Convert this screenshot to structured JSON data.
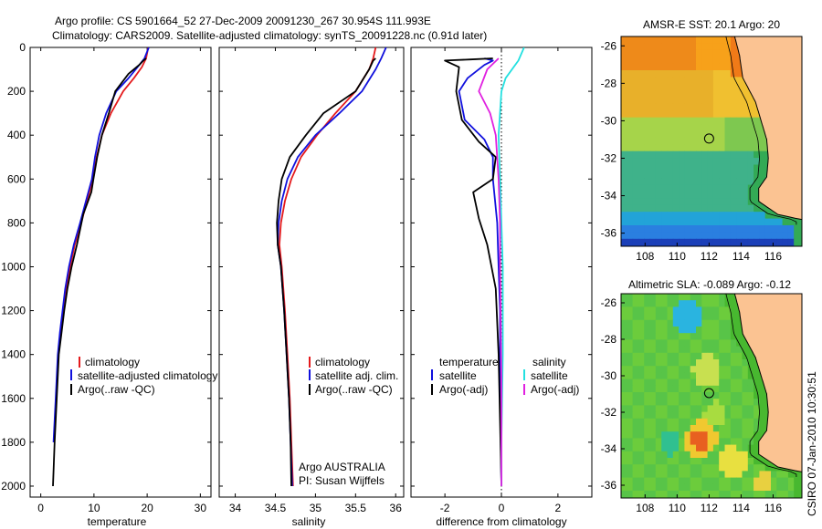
{
  "header": {
    "title_line1": "Argo profile: CS 5901664_52 27-Dec-2009 20091230_267 30.954S 111.993E",
    "title_line2": "Climatology: CARS2009. Satellite-adjusted climatology: synTS_20091228.nc (0.91d later)"
  },
  "side_label": "CSIRO 07-Jan-2010 10:30:51",
  "colors": {
    "climatology": "#e41a1c",
    "satellite": "#1010dd",
    "argo": "#000000",
    "sat_salinity": "#22e0e0",
    "argo_adj_salinity": "#e020e0",
    "land": "#fbc392"
  },
  "chart_data": [
    {
      "type": "line",
      "xlabel": "temperature",
      "ylabel": "",
      "xlim": [
        -2,
        32
      ],
      "ylim": [
        2050,
        0
      ],
      "xticks": [
        0,
        10,
        20,
        30
      ],
      "yticks": [
        0,
        200,
        400,
        600,
        800,
        1000,
        1200,
        1400,
        1600,
        1800,
        2000
      ],
      "legend": [
        "climatology",
        "satellite-adjusted climatology",
        "Argo(..raw -QC)"
      ],
      "series": [
        {
          "name": "climatology",
          "color": "#e41a1c",
          "x": [
            20.2,
            19.8,
            19.0,
            17.5,
            15.5,
            13.2,
            11.5,
            10.5,
            9.8,
            8.7,
            7.6,
            6.4,
            5.5,
            4.8,
            4.3,
            3.8,
            3.3,
            2.9,
            2.5
          ],
          "y": [
            0,
            50,
            90,
            140,
            200,
            300,
            400,
            500,
            600,
            700,
            800,
            900,
            1000,
            1100,
            1200,
            1300,
            1400,
            1600,
            1800
          ]
        },
        {
          "name": "satellite-adjusted climatology",
          "color": "#1010dd",
          "x": [
            20.3,
            19.5,
            18.2,
            16.5,
            14.2,
            12.3,
            11.0,
            10.2,
            9.6,
            8.5,
            7.4,
            6.2,
            5.3,
            4.6,
            4.1,
            3.6,
            3.2,
            2.8,
            2.4
          ],
          "y": [
            0,
            50,
            90,
            140,
            200,
            300,
            400,
            500,
            600,
            700,
            800,
            900,
            1000,
            1100,
            1200,
            1300,
            1400,
            1600,
            1800
          ]
        },
        {
          "name": "Argo(..raw -QC)",
          "color": "#000000",
          "x": [
            19.8,
            19.3,
            18.5,
            16.5,
            14.0,
            12.8,
            11.5,
            10.6,
            9.9,
            9.5,
            8.0,
            6.8,
            5.8,
            5.0,
            4.4,
            3.9,
            3.4,
            3.0,
            2.6,
            2.3
          ],
          "y": [
            50,
            60,
            80,
            120,
            200,
            300,
            400,
            500,
            600,
            660,
            760,
            900,
            1000,
            1100,
            1200,
            1300,
            1400,
            1600,
            1800,
            2000
          ]
        }
      ]
    },
    {
      "type": "line",
      "xlabel": "salinity",
      "ylabel": "",
      "xlim": [
        33.8,
        36.1
      ],
      "ylim": [
        2050,
        0
      ],
      "xticks": [
        34,
        34.5,
        35,
        35.5,
        36
      ],
      "legend": [
        "climatology",
        "satellite adj. clim.",
        "Argo(..raw -QC)"
      ],
      "annotation": [
        "Argo AUSTRALIA",
        "PI: Susan Wijffels"
      ],
      "series": [
        {
          "name": "climatology",
          "color": "#e41a1c",
          "x": [
            35.75,
            35.72,
            35.67,
            35.5,
            35.25,
            35.02,
            34.82,
            34.7,
            34.62,
            34.57,
            34.55,
            34.58,
            34.62,
            34.65,
            34.68,
            34.7,
            34.72
          ],
          "y": [
            0,
            50,
            100,
            200,
            300,
            400,
            500,
            600,
            700,
            800,
            900,
            1000,
            1200,
            1400,
            1600,
            1800,
            2000
          ]
        },
        {
          "name": "satellite adj. clim.",
          "color": "#1010dd",
          "x": [
            35.88,
            35.82,
            35.75,
            35.58,
            35.3,
            35.0,
            34.78,
            34.65,
            34.58,
            34.54,
            34.53,
            34.57,
            34.61,
            34.64,
            34.67,
            34.69,
            34.71
          ],
          "y": [
            0,
            50,
            100,
            200,
            300,
            400,
            500,
            600,
            700,
            800,
            900,
            1000,
            1200,
            1400,
            1600,
            1800,
            2000
          ]
        },
        {
          "name": "Argo(..raw -QC)",
          "color": "#000000",
          "x": [
            35.75,
            35.72,
            35.67,
            35.5,
            35.1,
            34.88,
            34.68,
            34.58,
            34.54,
            34.52,
            34.53,
            34.57,
            34.61,
            34.64,
            34.67,
            34.69,
            34.7
          ],
          "y": [
            50,
            60,
            100,
            200,
            300,
            400,
            500,
            600,
            700,
            800,
            900,
            1000,
            1200,
            1400,
            1600,
            1800,
            2000
          ]
        }
      ]
    },
    {
      "type": "line",
      "xlabel": "difference from climatology",
      "ylabel": "",
      "xlim": [
        -3.2,
        3.2
      ],
      "ylim": [
        2050,
        0
      ],
      "xticks": [
        -2,
        0,
        2
      ],
      "legend": [
        "temperature",
        "satellite",
        "Argo(-adj)",
        "salinity",
        "satellite",
        "Argo(-adj)"
      ],
      "series": [
        {
          "name": "temperature satellite",
          "color": "#1010dd",
          "x": [
            -0.6,
            -0.3,
            -0.6,
            -1.2,
            -1.5,
            -1.3,
            -0.6,
            -0.3,
            -0.3,
            -0.15,
            -0.1,
            -0.05,
            -0.05,
            0.0
          ],
          "y": [
            50,
            60,
            80,
            140,
            200,
            330,
            420,
            500,
            600,
            800,
            1000,
            1200,
            1600,
            2000
          ]
        },
        {
          "name": "temperature Argo(-adj)",
          "color": "#000000",
          "x": [
            -0.3,
            -1.1,
            -2.0,
            -1.5,
            -1.6,
            -1.4,
            -0.8,
            -0.2,
            -0.3,
            -1.0,
            -0.8,
            -0.5,
            -0.2,
            -0.1,
            -0.05,
            0.0
          ],
          "y": [
            50,
            55,
            60,
            90,
            200,
            330,
            430,
            500,
            600,
            660,
            780,
            900,
            1100,
            1400,
            1700,
            2000
          ]
        },
        {
          "name": "salinity satellite",
          "color": "#22e0e0",
          "x": [
            0.8,
            0.6,
            0.15,
            0.0,
            -0.1,
            -0.05,
            0.0,
            0.05,
            0.05,
            0.0,
            0.0
          ],
          "y": [
            0,
            60,
            140,
            200,
            400,
            600,
            800,
            1000,
            1400,
            1800,
            2000
          ]
        },
        {
          "name": "salinity Argo(-adj)",
          "color": "#e020e0",
          "x": [
            -0.1,
            -0.5,
            -0.8,
            -0.4,
            -0.2,
            -0.1,
            -0.05,
            -0.05,
            0.0,
            0.0
          ],
          "y": [
            50,
            100,
            200,
            300,
            400,
            600,
            800,
            1000,
            1500,
            2000
          ]
        }
      ]
    },
    {
      "type": "heatmap",
      "title": "AMSR-E SST: 20.1 Argo: 20",
      "xlim": [
        106.5,
        117.8
      ],
      "ylim": [
        -36.7,
        -25.5
      ],
      "xticks": [
        108,
        110,
        112,
        114,
        116
      ],
      "yticks": [
        -26,
        -28,
        -30,
        -32,
        -34,
        -36
      ],
      "marker": {
        "lon": 112.0,
        "lat": -30.95
      }
    },
    {
      "type": "heatmap",
      "title": "Altimetric SLA: -0.089 Argo: -0.12",
      "xlim": [
        106.5,
        117.8
      ],
      "ylim": [
        -36.7,
        -25.5
      ],
      "xticks": [
        108,
        110,
        112,
        114,
        116
      ],
      "yticks": [
        -26,
        -28,
        -30,
        -32,
        -34,
        -36
      ],
      "marker": {
        "lon": 112.0,
        "lat": -30.95
      }
    }
  ]
}
